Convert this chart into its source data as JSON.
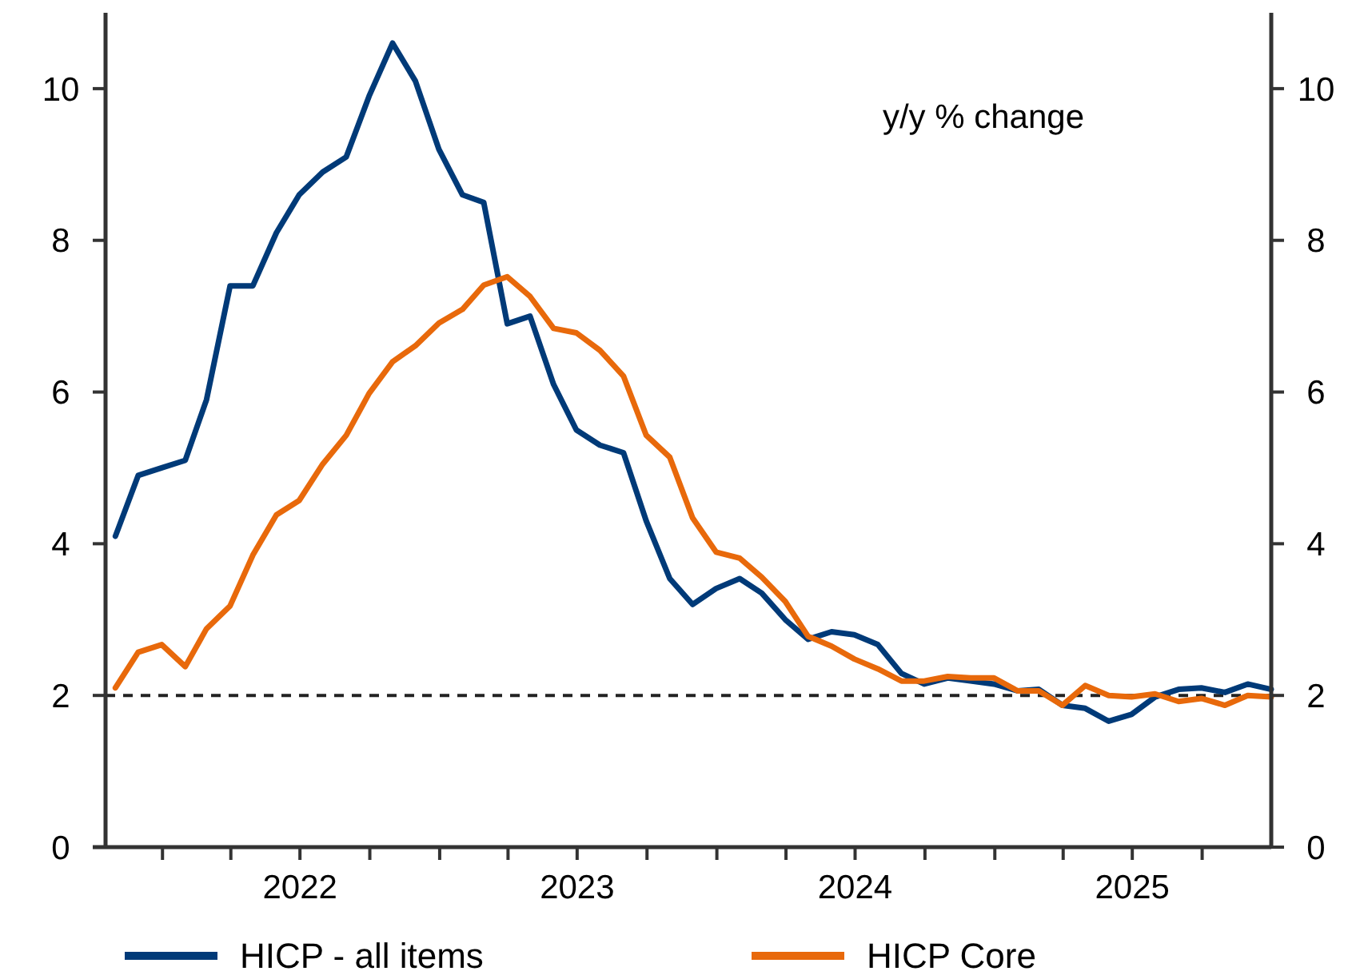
{
  "chart_data": {
    "type": "line",
    "x": [
      "2021-10-31",
      "2021-11-30",
      "2021-12-31",
      "2022-01-31",
      "2022-02-28",
      "2022-03-31",
      "2022-04-30",
      "2022-05-31",
      "2022-06-30",
      "2022-07-31",
      "2022-08-31",
      "2022-09-30",
      "2022-10-31",
      "2022-11-30",
      "2022-12-31",
      "2023-01-31",
      "2023-02-28",
      "2023-03-31",
      "2023-04-30",
      "2023-05-31",
      "2023-06-30",
      "2023-07-31",
      "2023-08-31",
      "2023-09-30",
      "2023-10-31",
      "2023-11-30",
      "2023-12-31",
      "2024-01-31",
      "2024-02-29",
      "2024-03-31",
      "2024-04-30",
      "2024-05-31",
      "2024-06-30",
      "2024-07-31",
      "2024-08-31",
      "2024-09-30",
      "2024-10-31",
      "2024-11-30",
      "2024-12-31",
      "2025-01-31",
      "2025-02-28",
      "2025-03-31",
      "2025-04-30",
      "2025-05-31",
      "2025-06-30",
      "2025-07-31",
      "2025-08-31",
      "2025-09-30",
      "2025-10-31",
      "2025-11-30",
      "2025-12-31"
    ],
    "series": [
      {
        "name": "HICP - all items",
        "color": "#003a78",
        "values": [
          4.1,
          4.9,
          5.0,
          5.1,
          5.9,
          7.4,
          7.4,
          8.1,
          8.6,
          8.9,
          9.1,
          9.9,
          10.6,
          10.1,
          9.2,
          8.6,
          8.5,
          6.9,
          7.0,
          6.1,
          5.5,
          5.3,
          5.2,
          4.3,
          3.54,
          3.2,
          3.41,
          3.54,
          3.35,
          3.0,
          2.74,
          2.84,
          2.8,
          2.67,
          2.29,
          2.15,
          2.23,
          2.19,
          2.15,
          2.06,
          2.08,
          1.87,
          1.83,
          1.66,
          1.75,
          1.98,
          2.08,
          2.1,
          2.04,
          2.15,
          2.08
        ]
      },
      {
        "name": "HICP Core",
        "color": "#e8690b",
        "values": [
          2.1,
          2.57,
          2.67,
          2.38,
          2.88,
          3.18,
          3.85,
          4.38,
          4.57,
          5.05,
          5.43,
          5.98,
          6.4,
          6.61,
          6.91,
          7.09,
          7.41,
          7.52,
          7.26,
          6.84,
          6.78,
          6.55,
          6.21,
          5.43,
          5.14,
          4.34,
          3.89,
          3.81,
          3.56,
          3.24,
          2.78,
          2.65,
          2.48,
          2.35,
          2.19,
          2.19,
          2.25,
          2.23,
          2.23,
          2.06,
          2.06,
          1.87,
          2.13,
          2.0,
          1.98,
          2.02,
          1.92,
          1.96,
          1.87,
          2.0,
          1.98
        ]
      }
    ],
    "xlim": [
      "2021-10-18",
      "2025-12-31"
    ],
    "xticks": [
      {
        "value": "2022-01-01",
        "label": null
      },
      {
        "value": "2022-04-01",
        "label": null
      },
      {
        "value": "2022-07-01",
        "label": "2022"
      },
      {
        "value": "2022-10-01",
        "label": null
      },
      {
        "value": "2023-01-01",
        "label": null
      },
      {
        "value": "2023-04-01",
        "label": null
      },
      {
        "value": "2023-07-01",
        "label": "2023"
      },
      {
        "value": "2023-10-01",
        "label": null
      },
      {
        "value": "2024-01-01",
        "label": null
      },
      {
        "value": "2024-04-01",
        "label": null
      },
      {
        "value": "2024-07-01",
        "label": "2024"
      },
      {
        "value": "2024-10-01",
        "label": null
      },
      {
        "value": "2025-01-01",
        "label": null
      },
      {
        "value": "2025-04-01",
        "label": null
      },
      {
        "value": "2025-07-01",
        "label": "2025"
      },
      {
        "value": "2025-10-01",
        "label": null
      }
    ],
    "ylim": [
      0,
      11
    ],
    "yticks": [
      0,
      2,
      4,
      6,
      8,
      10
    ],
    "y2lim": [
      0,
      11
    ],
    "y2ticks": [
      0,
      2,
      4,
      6,
      8,
      10
    ],
    "ref_lines": [
      {
        "axis": "y",
        "value": 2,
        "color": "#222222",
        "line_style": "dashed"
      }
    ],
    "annotations": [
      "y/y % change"
    ],
    "legend": "bottom"
  }
}
